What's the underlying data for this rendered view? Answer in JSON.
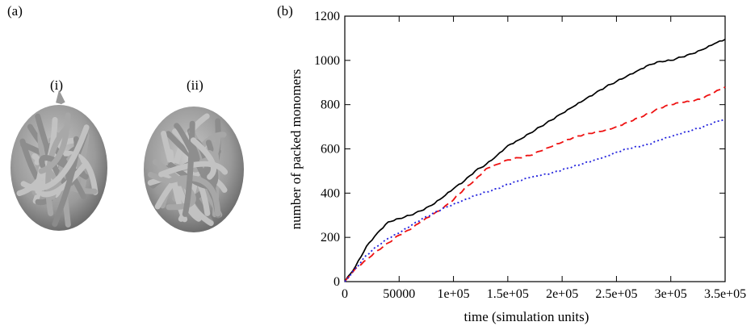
{
  "figure": {
    "panel_a_label": "(a)",
    "panel_b_label": "(b)",
    "subpanel_i_label": "(i)",
    "subpanel_ii_label": "(ii)"
  },
  "chart_data": {
    "type": "line",
    "title": "",
    "xlabel": "time (simulation units)",
    "ylabel": "number of packed monomers",
    "xlim": [
      0,
      350000
    ],
    "ylim": [
      0,
      1200
    ],
    "x_ticks": [
      0,
      50000,
      100000,
      150000,
      200000,
      250000,
      300000,
      350000
    ],
    "x_tick_labels": [
      "0",
      "50000",
      "1e+05",
      "1.5e+05",
      "2e+05",
      "2.5e+05",
      "3e+05",
      "3.5e+05"
    ],
    "y_ticks": [
      0,
      200,
      400,
      600,
      800,
      1000,
      1200
    ],
    "y_tick_labels": [
      "0",
      "200",
      "400",
      "600",
      "800",
      "1000",
      "1200"
    ],
    "grid": false,
    "series": [
      {
        "color": "#000000",
        "style": "solid",
        "x": [
          0,
          10000,
          20000,
          30000,
          40000,
          50000,
          60000,
          70000,
          80000,
          90000,
          100000,
          110000,
          120000,
          130000,
          140000,
          150000,
          160000,
          170000,
          180000,
          190000,
          200000,
          210000,
          220000,
          230000,
          240000,
          250000,
          260000,
          270000,
          280000,
          290000,
          300000,
          310000,
          320000,
          330000,
          340000,
          350000
        ],
        "y": [
          0,
          70,
          160,
          220,
          270,
          285,
          300,
          320,
          345,
          380,
          420,
          455,
          500,
          530,
          570,
          615,
          640,
          670,
          700,
          730,
          760,
          790,
          820,
          850,
          880,
          905,
          930,
          955,
          980,
          995,
          1000,
          1015,
          1030,
          1050,
          1075,
          1095
        ]
      },
      {
        "color": "#ee1111",
        "style": "dashed",
        "x": [
          0,
          10000,
          20000,
          30000,
          40000,
          50000,
          60000,
          70000,
          80000,
          90000,
          100000,
          110000,
          120000,
          130000,
          140000,
          150000,
          160000,
          170000,
          180000,
          190000,
          200000,
          210000,
          220000,
          230000,
          240000,
          250000,
          260000,
          270000,
          280000,
          290000,
          300000,
          310000,
          320000,
          330000,
          340000,
          350000
        ],
        "y": [
          0,
          60,
          100,
          140,
          175,
          210,
          235,
          270,
          300,
          330,
          370,
          420,
          460,
          510,
          530,
          550,
          560,
          570,
          590,
          610,
          630,
          650,
          665,
          675,
          685,
          700,
          720,
          740,
          760,
          785,
          800,
          810,
          815,
          830,
          855,
          880
        ]
      },
      {
        "color": "#2222dd",
        "style": "dotted",
        "x": [
          0,
          10000,
          20000,
          30000,
          40000,
          50000,
          60000,
          70000,
          80000,
          90000,
          100000,
          110000,
          120000,
          130000,
          140000,
          150000,
          160000,
          170000,
          180000,
          190000,
          200000,
          210000,
          220000,
          230000,
          240000,
          250000,
          260000,
          270000,
          280000,
          290000,
          300000,
          310000,
          320000,
          330000,
          340000,
          350000
        ],
        "y": [
          0,
          60,
          120,
          160,
          195,
          220,
          250,
          280,
          305,
          330,
          350,
          370,
          390,
          405,
          420,
          440,
          455,
          470,
          480,
          490,
          505,
          520,
          535,
          550,
          565,
          585,
          600,
          610,
          620,
          640,
          655,
          670,
          685,
          700,
          720,
          735
        ]
      }
    ]
  }
}
